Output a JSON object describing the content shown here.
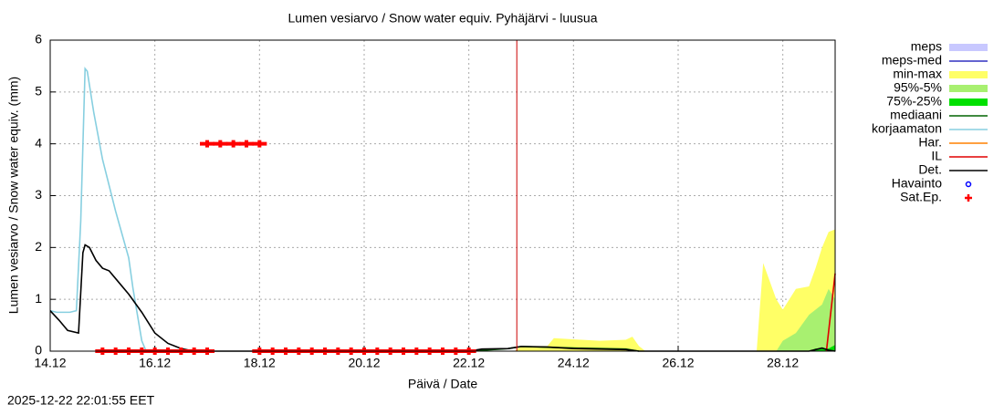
{
  "chart_data": {
    "type": "line",
    "title": "Lumen vesiarvo / Snow water equiv.  Pyhäjärvi - luusua",
    "x_label": "Päivä / Date",
    "y_label": "Lumen vesiarvo / Snow water equiv. (mm)",
    "timestamp": "2025-12-22 22:01:55 EET",
    "now": "2025-12-22T22:00",
    "now_color": "#cc0000",
    "grid": true,
    "legend": "right",
    "xlim": [
      "2025-12-14T00:00",
      "2025-12-29T00:00"
    ],
    "xticks": [
      {
        "value": "2025-12-14T00:00",
        "label": "14.12"
      },
      {
        "value": "2025-12-16T00:00",
        "label": "16.12"
      },
      {
        "value": "2025-12-18T00:00",
        "label": "18.12"
      },
      {
        "value": "2025-12-20T00:00",
        "label": "20.12"
      },
      {
        "value": "2025-12-22T00:00",
        "label": "22.12"
      },
      {
        "value": "2025-12-24T00:00",
        "label": "24.12"
      },
      {
        "value": "2025-12-26T00:00",
        "label": "26.12"
      },
      {
        "value": "2025-12-28T00:00",
        "label": "28.12"
      }
    ],
    "ylim": [
      0,
      6
    ],
    "yticks": [
      0,
      1,
      2,
      3,
      4,
      5,
      6
    ],
    "series": [
      {
        "name": "meps",
        "kind": "area",
        "color": "#c8c8ff",
        "x": [],
        "values": []
      },
      {
        "name": "meps-med",
        "kind": "line",
        "color": "#3030c0",
        "x": [],
        "values": []
      },
      {
        "name": "min-max",
        "kind": "area",
        "color": "#ffff66",
        "x": [
          "2025-12-22T21:00",
          "2025-12-23T00:00",
          "2025-12-23T12:00",
          "2025-12-23T15:00",
          "2025-12-24T12:00",
          "2025-12-25T00:00",
          "2025-12-25T03:00",
          "2025-12-25T06:00",
          "2025-12-25T09:00",
          "2025-12-26T00:00",
          "2025-12-27T12:00",
          "2025-12-27T15:00",
          "2025-12-27T21:00",
          "2025-12-28T00:00",
          "2025-12-28T06:00",
          "2025-12-28T12:00",
          "2025-12-28T15:00",
          "2025-12-28T18:00",
          "2025-12-28T21:00",
          "2025-12-29T00:00"
        ],
        "values": [
          0,
          0.1,
          0.1,
          0.25,
          0.2,
          0.22,
          0.28,
          0.1,
          0,
          null,
          0,
          1.7,
          1.0,
          0.8,
          1.2,
          1.25,
          1.6,
          2.0,
          2.3,
          2.35
        ]
      },
      {
        "name": "95%-5%",
        "kind": "area",
        "color": "#a8f070",
        "x": [
          "2025-12-27T21:00",
          "2025-12-28T00:00",
          "2025-12-28T06:00",
          "2025-12-28T12:00",
          "2025-12-28T18:00",
          "2025-12-28T21:00",
          "2025-12-29T00:00"
        ],
        "values": [
          0,
          0.2,
          0.35,
          0.7,
          0.9,
          1.2,
          1.0
        ]
      },
      {
        "name": "75%-25%",
        "kind": "area",
        "color": "#00e000",
        "x": [
          "2025-12-28T12:00",
          "2025-12-28T15:00",
          "2025-12-28T21:00",
          "2025-12-29T00:00"
        ],
        "values": [
          0,
          0.05,
          0.05,
          0.12
        ]
      },
      {
        "name": "mediaani",
        "kind": "line",
        "color": "#006400",
        "x": [
          "2025-12-22T00:00",
          "2025-12-22T18:00",
          "2025-12-23T00:00",
          "2025-12-24T00:00",
          "2025-12-25T00:00",
          "2025-12-25T06:00"
        ],
        "values": [
          0,
          0.05,
          0.09,
          0.06,
          0.04,
          0
        ]
      },
      {
        "name": "korjaamaton",
        "kind": "line",
        "color": "#87cfe0",
        "x": [
          "2025-12-14T00:00",
          "2025-12-14T03:00",
          "2025-12-14T09:00",
          "2025-12-14T12:00",
          "2025-12-14T14:00",
          "2025-12-14T16:00",
          "2025-12-14T17:00",
          "2025-12-14T20:00",
          "2025-12-15T00:00",
          "2025-12-15T06:00",
          "2025-12-15T12:00",
          "2025-12-15T14:00",
          "2025-12-15T18:00",
          "2025-12-15T20:00"
        ],
        "values": [
          0.78,
          0.75,
          0.75,
          0.78,
          2.5,
          5.45,
          5.4,
          4.6,
          3.7,
          2.7,
          1.8,
          1.2,
          0.2,
          0
        ]
      },
      {
        "name": "Har.",
        "kind": "line",
        "color": "#ff8000",
        "x": [],
        "values": []
      },
      {
        "name": "IL",
        "kind": "line",
        "color": "#e00000",
        "x": [
          "2025-12-28T20:00",
          "2025-12-29T00:00"
        ],
        "values": [
          0,
          1.5
        ]
      },
      {
        "name": "Det.",
        "kind": "line",
        "color": "#000000",
        "x": [
          "2025-12-14T00:00",
          "2025-12-14T04:00",
          "2025-12-14T08:00",
          "2025-12-14T13:00",
          "2025-12-14T15:00",
          "2025-12-14T16:00",
          "2025-12-14T18:00",
          "2025-12-14T21:00",
          "2025-12-15T00:00",
          "2025-12-15T03:00",
          "2025-12-15T06:00",
          "2025-12-15T12:00",
          "2025-12-15T18:00",
          "2025-12-16T00:00",
          "2025-12-16T06:00",
          "2025-12-16T12:00",
          "2025-12-16T18:00",
          "2025-12-22T00:00",
          "2025-12-22T06:00",
          "2025-12-22T18:00",
          "2025-12-23T00:00",
          "2025-12-23T12:00",
          "2025-12-24T00:00",
          "2025-12-25T00:00",
          "2025-12-25T06:00",
          "2025-12-28T12:00",
          "2025-12-28T18:00",
          "2025-12-28T21:00",
          "2025-12-29T00:00"
        ],
        "values": [
          0.78,
          0.6,
          0.4,
          0.35,
          1.9,
          2.05,
          2.0,
          1.75,
          1.6,
          1.55,
          1.4,
          1.1,
          0.75,
          0.35,
          0.15,
          0.05,
          0,
          0,
          0.04,
          0.05,
          0.09,
          0.08,
          0.05,
          0.03,
          0,
          0,
          0.06,
          0.02,
          0
        ]
      },
      {
        "name": "Havainto",
        "kind": "circle",
        "color": "#0000ff",
        "x": [],
        "values": []
      },
      {
        "name": "Sat.Ep.",
        "kind": "cross",
        "color": "#ff0000",
        "x": [
          "2025-12-15T00:00",
          "2025-12-15T06:00",
          "2025-12-15T12:00",
          "2025-12-15T18:00",
          "2025-12-16T00:00",
          "2025-12-16T06:00",
          "2025-12-16T12:00",
          "2025-12-16T18:00",
          "2025-12-17T00:00",
          "2025-12-17T00:00",
          "2025-12-17T06:00",
          "2025-12-17T12:00",
          "2025-12-17T18:00",
          "2025-12-18T00:00",
          "2025-12-18T00:00",
          "2025-12-18T06:00",
          "2025-12-18T12:00",
          "2025-12-18T18:00",
          "2025-12-19T00:00",
          "2025-12-19T06:00",
          "2025-12-19T12:00",
          "2025-12-19T18:00",
          "2025-12-20T00:00",
          "2025-12-20T06:00",
          "2025-12-20T12:00",
          "2025-12-20T18:00",
          "2025-12-21T00:00",
          "2025-12-21T06:00",
          "2025-12-21T12:00",
          "2025-12-21T18:00",
          "2025-12-22T00:00"
        ],
        "values": [
          0,
          0,
          0,
          0,
          0,
          0,
          0,
          0,
          0,
          4,
          4,
          4,
          4,
          4,
          0,
          0,
          0,
          0,
          0,
          0,
          0,
          0,
          0,
          0,
          0,
          0,
          0,
          0,
          0,
          0,
          0
        ]
      }
    ]
  }
}
